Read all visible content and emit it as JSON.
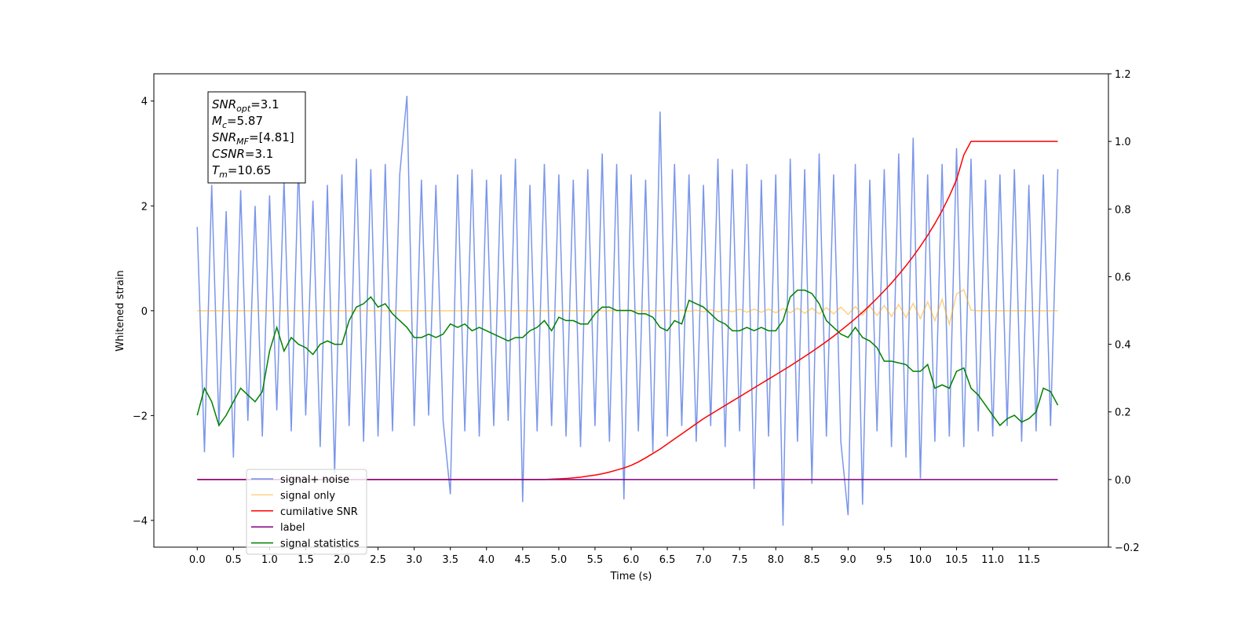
{
  "chart_data": {
    "type": "line",
    "xlabel": "Time (s)",
    "ylabel": "Whitened strain",
    "xlim": [
      -0.6,
      12.6
    ],
    "ylim": [
      -4.51,
      4.52
    ],
    "y2lim": [
      -0.2,
      1.2
    ],
    "xticks": [
      {
        "value": 0,
        "label": "0.0"
      },
      0.5,
      {
        "value": 1,
        "label": "1.0"
      },
      1.5,
      {
        "value": 2,
        "label": "2.0"
      },
      2.5,
      {
        "value": 3,
        "label": "3.0"
      },
      3.5,
      {
        "value": 4,
        "label": "4.0"
      },
      4.5,
      {
        "value": 5,
        "label": "5.0"
      },
      5.5,
      {
        "value": 6,
        "label": "6.0"
      },
      6.5,
      {
        "value": 7,
        "label": "7.0"
      },
      7.5,
      {
        "value": 8,
        "label": "8.0"
      },
      8.5,
      {
        "value": 9,
        "label": "9.0"
      },
      9.5,
      {
        "value": 10,
        "label": "10.0"
      },
      10.5,
      {
        "value": 11,
        "label": "11.0"
      },
      11.5
    ],
    "yticks": [
      {
        "value": -4,
        "label": "−4"
      },
      {
        "value": -2,
        "label": "−2"
      },
      0,
      2,
      4
    ],
    "y2ticks": [
      {
        "value": -0.2,
        "label": "−0.2"
      },
      {
        "value": 0,
        "label": "0.0"
      },
      0.2,
      0.4,
      0.6,
      0.8,
      {
        "value": 1,
        "label": "1.0"
      },
      1.2
    ],
    "legend": "lower left",
    "annotation": [
      {
        "base": "SNR",
        "sub": "opt",
        "text": "=3.1"
      },
      {
        "base": "M",
        "sub": "c",
        "text": "=5.87"
      },
      {
        "base": "SNR",
        "sub": "MF",
        "text": "=[4.81]"
      },
      {
        "base": "CSNR",
        "sub": null,
        "text": "=3.1"
      },
      {
        "base": "T",
        "sub": "m",
        "text": "=10.65"
      }
    ],
    "x": [
      0,
      0.1,
      0.2,
      0.3,
      0.4,
      0.5,
      0.6,
      0.7,
      0.8,
      0.9,
      1,
      1.1,
      1.2,
      1.3,
      1.4,
      1.5,
      1.6,
      1.7,
      1.8,
      1.9,
      2,
      2.1,
      2.2,
      2.3,
      2.4,
      2.5,
      2.6,
      2.7,
      2.8,
      2.9,
      3,
      3.1,
      3.2,
      3.3,
      3.4,
      3.5,
      3.6,
      3.7,
      3.8,
      3.9,
      4,
      4.1,
      4.2,
      4.3,
      4.4,
      4.5,
      4.6,
      4.7,
      4.8,
      4.9,
      5,
      5.1,
      5.2,
      5.3,
      5.4,
      5.5,
      5.6,
      5.7,
      5.8,
      5.9,
      6,
      6.1,
      6.2,
      6.3,
      6.4,
      6.5,
      6.6,
      6.7,
      6.8,
      6.9,
      7,
      7.1,
      7.2,
      7.3,
      7.4,
      7.5,
      7.6,
      7.7,
      7.8,
      7.9,
      8,
      8.1,
      8.2,
      8.3,
      8.4,
      8.5,
      8.6,
      8.7,
      8.8,
      8.9,
      9,
      9.1,
      9.2,
      9.3,
      9.4,
      9.5,
      9.6,
      9.7,
      9.8,
      9.9,
      10,
      10.1,
      10.2,
      10.3,
      10.4,
      10.5,
      10.6,
      10.7,
      10.8,
      10.9,
      11,
      11.1,
      11.2,
      11.3,
      11.4,
      11.5,
      11.6,
      11.7,
      11.8,
      11.9
    ],
    "series": [
      {
        "name": "signal+ noise",
        "color": "royalblue",
        "alpha": 0.7,
        "axis": "y",
        "values": [
          1.6,
          -2.7,
          2.4,
          -2.2,
          1.9,
          -2.8,
          2.3,
          -2.1,
          2.0,
          -2.4,
          2.2,
          -1.9,
          2.5,
          -2.3,
          2.8,
          -2.0,
          2.1,
          -2.6,
          2.4,
          -3.1,
          2.6,
          -2.2,
          2.9,
          -2.5,
          2.7,
          -2.4,
          2.8,
          -2.3,
          2.6,
          4.1,
          -2.2,
          2.5,
          -2.0,
          2.4,
          -2.1,
          -3.5,
          2.6,
          -2.3,
          2.7,
          -2.4,
          2.5,
          -2.2,
          2.6,
          -2.1,
          2.9,
          -3.65,
          2.4,
          -2.3,
          2.8,
          -2.2,
          2.6,
          -2.4,
          2.5,
          -2.6,
          2.7,
          -2.2,
          3.0,
          -2.5,
          2.8,
          -3.6,
          2.6,
          -2.3,
          2.5,
          -2.7,
          3.8,
          -2.4,
          2.8,
          -2.2,
          2.6,
          -2.5,
          2.4,
          -2.2,
          2.9,
          -2.6,
          2.7,
          -2.3,
          2.8,
          -3.4,
          2.5,
          -2.4,
          2.6,
          -4.1,
          2.9,
          -2.5,
          2.7,
          -3.3,
          3.0,
          -2.4,
          2.6,
          -2.5,
          -3.9,
          2.8,
          -3.7,
          2.5,
          -2.3,
          2.7,
          -2.6,
          3.0,
          -2.8,
          3.3,
          -3.2,
          2.6,
          -2.5,
          2.8,
          -2.4,
          3.1,
          -2.6,
          2.9,
          -2.3,
          2.5,
          -2.4,
          2.6,
          -2.2,
          2.7,
          -2.5,
          2.4,
          -2.3,
          2.6,
          -2.2,
          2.7
        ]
      },
      {
        "name": "signal only",
        "color": "orange",
        "alpha": 0.5,
        "axis": "y",
        "values": [
          0,
          0,
          0,
          0,
          0,
          0,
          0,
          0,
          0,
          0,
          0,
          0,
          0,
          0,
          0,
          0,
          0,
          0,
          0,
          0,
          0,
          0,
          0,
          0,
          0,
          0,
          0,
          0,
          0,
          0,
          0,
          0,
          0,
          0,
          0,
          0,
          0,
          0,
          0,
          0,
          0,
          0,
          0,
          0,
          0,
          0,
          0,
          0,
          0,
          0,
          0,
          0,
          0,
          0,
          0,
          0,
          0,
          0,
          0,
          0,
          0,
          0,
          0,
          0,
          0,
          0.01,
          -0.01,
          0.01,
          -0.01,
          0.01,
          -0.02,
          0.02,
          -0.02,
          0.02,
          -0.02,
          0.03,
          -0.03,
          0.03,
          -0.03,
          0.03,
          -0.04,
          0.04,
          -0.04,
          0.05,
          -0.05,
          0.05,
          -0.06,
          0.06,
          -0.06,
          0.07,
          -0.07,
          0.08,
          -0.08,
          0.09,
          -0.09,
          0.1,
          -0.11,
          0.12,
          -0.13,
          0.14,
          -0.15,
          0.17,
          -0.19,
          0.22,
          -0.26,
          0.32,
          0.4,
          0.01,
          0,
          0,
          0,
          0,
          0,
          0,
          0,
          0,
          0,
          0,
          0,
          0
        ]
      },
      {
        "name": "cumilative SNR",
        "color": "red",
        "alpha": 1,
        "axis": "y2",
        "values": [
          0,
          0,
          0,
          0,
          0,
          0,
          0,
          0,
          0,
          0,
          0,
          0,
          0,
          0,
          0,
          0,
          0,
          0,
          0,
          0,
          0,
          0,
          0,
          0,
          0,
          0,
          0,
          0,
          0,
          0,
          0,
          0,
          0,
          0,
          0,
          0,
          0,
          0,
          0,
          0,
          0,
          0,
          0,
          0,
          0,
          0,
          0,
          0,
          0,
          0.001,
          0.002,
          0.003,
          0.005,
          0.007,
          0.01,
          0.013,
          0.017,
          0.022,
          0.028,
          0.034,
          0.042,
          0.052,
          0.064,
          0.077,
          0.09,
          0.105,
          0.12,
          0.135,
          0.15,
          0.165,
          0.18,
          0.193,
          0.206,
          0.219,
          0.232,
          0.245,
          0.258,
          0.271,
          0.284,
          0.297,
          0.31,
          0.323,
          0.336,
          0.35,
          0.364,
          0.378,
          0.393,
          0.408,
          0.424,
          0.441,
          0.458,
          0.476,
          0.495,
          0.515,
          0.536,
          0.558,
          0.581,
          0.606,
          0.632,
          0.66,
          0.69,
          0.722,
          0.757,
          0.795,
          0.838,
          0.887,
          0.96,
          1,
          1,
          1,
          1,
          1,
          1,
          1,
          1,
          1,
          1,
          1,
          1,
          1
        ]
      },
      {
        "name": "label",
        "color": "purple",
        "alpha": 1,
        "axis": "y2",
        "values": [
          0,
          0,
          0,
          0,
          0,
          0,
          0,
          0,
          0,
          0,
          0,
          0,
          0,
          0,
          0,
          0,
          0,
          0,
          0,
          0,
          0,
          0,
          0,
          0,
          0,
          0,
          0,
          0,
          0,
          0,
          0,
          0,
          0,
          0,
          0,
          0,
          0,
          0,
          0,
          0,
          0,
          0,
          0,
          0,
          0,
          0,
          0,
          0,
          0,
          0,
          0,
          0,
          0,
          0,
          0,
          0,
          0,
          0,
          0,
          0,
          0,
          0,
          0,
          0,
          0,
          0,
          0,
          0,
          0,
          0,
          0,
          0,
          0,
          0,
          0,
          0,
          0,
          0,
          0,
          0,
          0,
          0,
          0,
          0,
          0,
          0,
          0,
          0,
          0,
          0,
          0,
          0,
          0,
          0,
          0,
          0,
          0,
          0,
          0,
          0,
          0,
          0,
          0,
          0,
          0,
          0,
          0,
          0,
          0,
          0,
          0,
          0,
          0,
          0,
          0,
          0,
          0,
          0,
          0,
          0
        ]
      },
      {
        "name": "signal statistics",
        "color": "green",
        "alpha": 1,
        "axis": "y2",
        "values": [
          0.19,
          0.27,
          0.23,
          0.16,
          0.19,
          0.23,
          0.27,
          0.25,
          0.23,
          0.26,
          0.38,
          0.45,
          0.38,
          0.42,
          0.4,
          0.39,
          0.37,
          0.4,
          0.41,
          0.4,
          0.4,
          0.47,
          0.51,
          0.52,
          0.54,
          0.51,
          0.52,
          0.49,
          0.47,
          0.45,
          0.42,
          0.42,
          0.43,
          0.42,
          0.43,
          0.46,
          0.45,
          0.46,
          0.44,
          0.45,
          0.44,
          0.43,
          0.42,
          0.41,
          0.42,
          0.42,
          0.44,
          0.45,
          0.47,
          0.44,
          0.48,
          0.47,
          0.47,
          0.46,
          0.46,
          0.49,
          0.51,
          0.51,
          0.5,
          0.5,
          0.5,
          0.49,
          0.49,
          0.48,
          0.45,
          0.44,
          0.47,
          0.46,
          0.53,
          0.52,
          0.51,
          0.49,
          0.47,
          0.46,
          0.44,
          0.44,
          0.45,
          0.44,
          0.45,
          0.44,
          0.44,
          0.47,
          0.54,
          0.56,
          0.56,
          0.55,
          0.52,
          0.47,
          0.45,
          0.43,
          0.42,
          0.45,
          0.42,
          0.41,
          0.39,
          0.35,
          0.35,
          0.345,
          0.34,
          0.32,
          0.32,
          0.34,
          0.27,
          0.28,
          0.27,
          0.32,
          0.33,
          0.27,
          0.25,
          0.22,
          0.19,
          0.16,
          0.18,
          0.19,
          0.17,
          0.18,
          0.2,
          0.27,
          0.26,
          0.22
        ]
      }
    ]
  }
}
